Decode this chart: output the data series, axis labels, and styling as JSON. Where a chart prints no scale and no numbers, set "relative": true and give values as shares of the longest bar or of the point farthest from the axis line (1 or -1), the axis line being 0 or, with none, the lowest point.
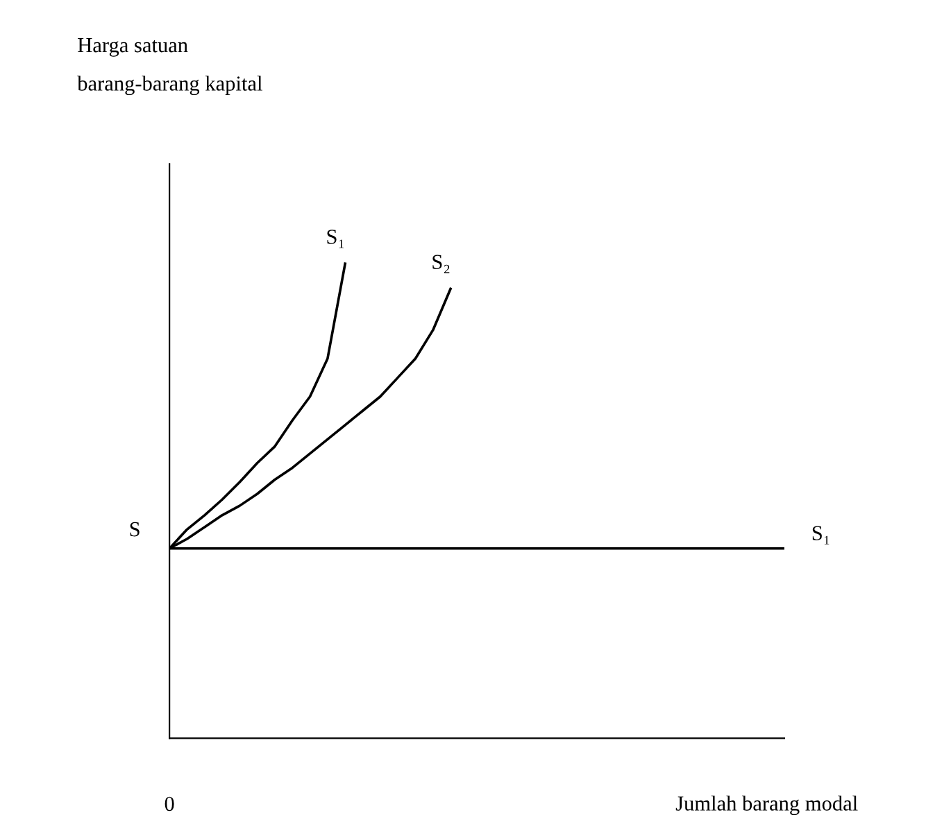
{
  "chart_data": {
    "type": "line",
    "relative": true,
    "xlabel": "Jumlah barang modal",
    "annotations": [
      "S",
      "0",
      "Harga satuan\nbarang-barang kapital"
    ],
    "categories": [
      null,
      null,
      null,
      null,
      null,
      null,
      null,
      null,
      null,
      null,
      null,
      null,
      null,
      null,
      null,
      null,
      null,
      null,
      null,
      null,
      null,
      null,
      null,
      null,
      null,
      null,
      null,
      null,
      null,
      null,
      null,
      null,
      null,
      null,
      null,
      null
    ],
    "series": [
      {
        "name": "S₁",
        "color": "#000000",
        "values": [
          0.4,
          0.44,
          0.47,
          0.503,
          0.54,
          0.58,
          0.615,
          0.67,
          0.72,
          0.8,
          1.0,
          null,
          null,
          null,
          null,
          null,
          null,
          null,
          null,
          null,
          null,
          null,
          null,
          null,
          null,
          null,
          null,
          null,
          null,
          null,
          null,
          null,
          null,
          null,
          null,
          null
        ]
      },
      {
        "name": "S₂",
        "color": "#000000",
        "values": [
          0.4,
          0.42,
          0.445,
          0.47,
          0.49,
          0.515,
          0.545,
          0.57,
          0.6,
          0.63,
          0.66,
          0.69,
          0.72,
          0.76,
          0.8,
          0.86,
          0.947,
          null,
          null,
          null,
          null,
          null,
          null,
          null,
          null,
          null,
          null,
          null,
          null,
          null,
          null,
          null,
          null,
          null,
          null,
          null
        ]
      },
      {
        "name": "S₁",
        "color": "#000000",
        "values": [
          0.4,
          0.4,
          0.4,
          0.4,
          0.4,
          0.4,
          0.4,
          0.4,
          0.4,
          0.4,
          0.4,
          0.4,
          0.4,
          0.4,
          0.4,
          0.4,
          0.4,
          0.4,
          0.4,
          0.4,
          0.4,
          0.4,
          0.4,
          0.4,
          0.4,
          0.4,
          0.4,
          0.4,
          0.4,
          0.4,
          0.4,
          0.4,
          0.4,
          0.4,
          0.4,
          0.4
        ]
      }
    ],
    "legend": false,
    "marker": "none",
    "line_style": "solid"
  }
}
